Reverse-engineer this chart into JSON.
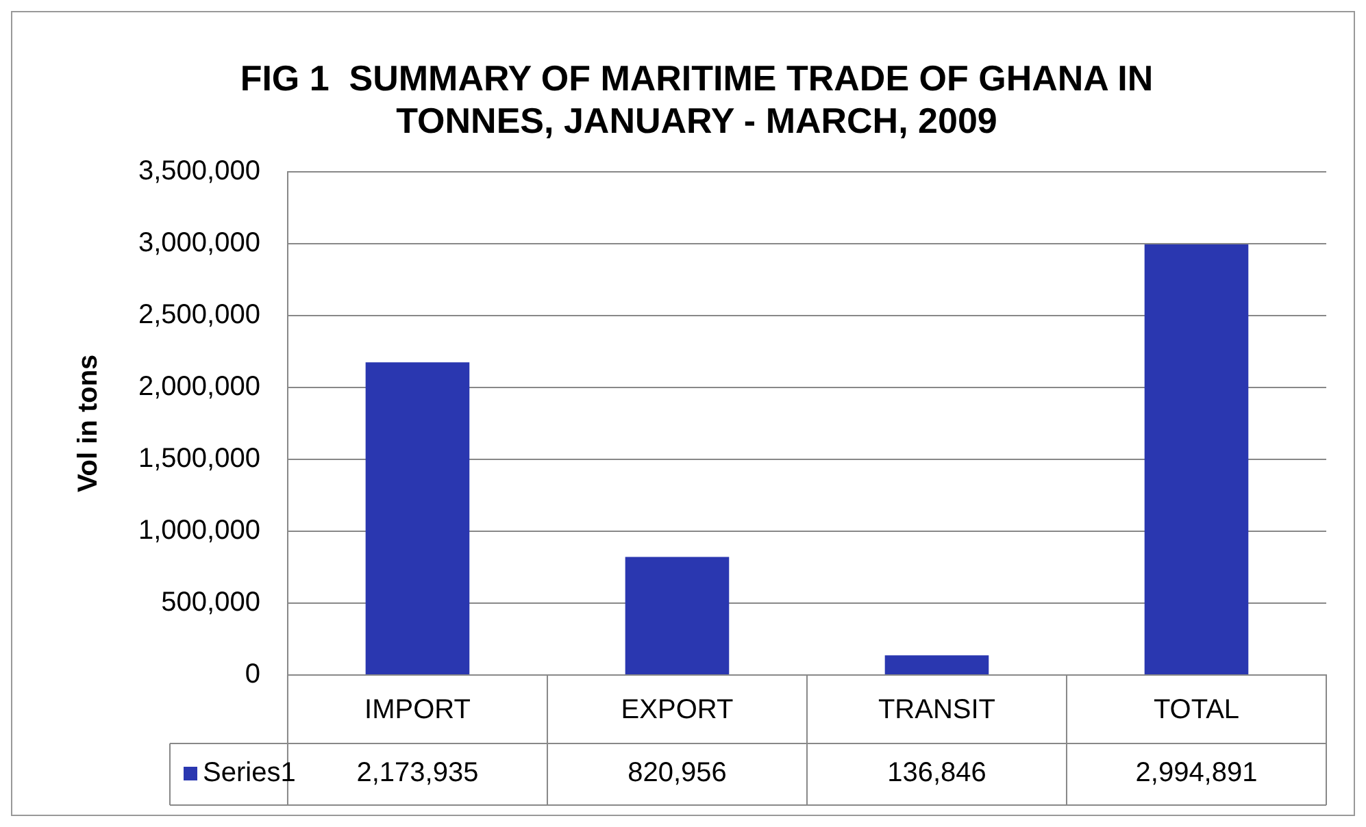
{
  "chart_data": {
    "type": "bar",
    "title": [
      "FIG 1  SUMMARY OF MARITIME TRADE OF GHANA IN",
      "TONNES, JANUARY - MARCH, 2009"
    ],
    "ylabel": "Vol in tons",
    "categories": [
      "IMPORT",
      "EXPORT",
      "TRANSIT",
      "TOTAL"
    ],
    "series": [
      {
        "name": "Series1",
        "color": "#2a37b0",
        "values": [
          2173935,
          820956,
          136846,
          2994891
        ],
        "value_labels": [
          "2,173,935",
          "820,956",
          "136,846",
          "2,994,891"
        ]
      }
    ],
    "ylim": [
      0,
      3500000
    ],
    "yticks": [
      0,
      {
        "value": 500000,
        "label": "500,000"
      },
      {
        "value": 1000000,
        "label": "1,000,000"
      },
      {
        "value": 1500000,
        "label": "1,500,000"
      },
      {
        "value": 2000000,
        "label": "2,000,000"
      },
      {
        "value": 2500000,
        "label": "2,500,000"
      },
      {
        "value": 3000000,
        "label": "3,000,000"
      },
      {
        "value": 3500000,
        "label": "3,500,000"
      }
    ],
    "grid": "y"
  }
}
